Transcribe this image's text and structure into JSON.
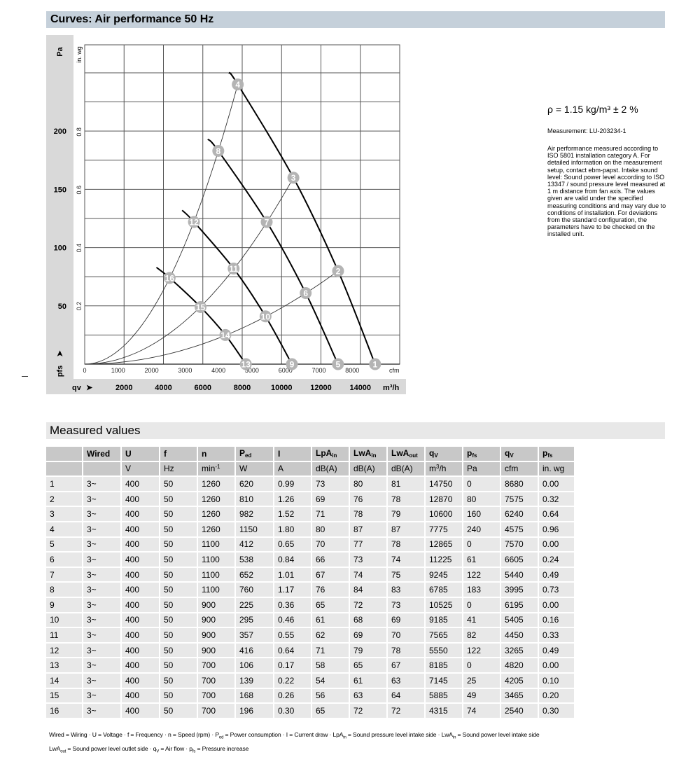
{
  "curves_header": {
    "title": "Curves: Air performance 50 Hz"
  },
  "info": {
    "density": "ρ = 1.15 kg/m³ ± 2 %",
    "measurement": "Measurement: LU-203234-1",
    "description": "Air performance measured according to ISO 5801 installation category A. For detailed information on the measurement setup, contact ebm-papst. Intake sound level: Sound power level according to ISO 13347 / sound pressure level measured at 1 m distance from fan axis. The values given are valid under the specified measuring conditions and may vary due to conditions of installation. For deviations from the standard configuration, the parameters have to be checked on the installed unit."
  },
  "chart_data": {
    "type": "line",
    "title": "",
    "xlabel": "qv",
    "xunit": "m³/h",
    "xunit_secondary": "cfm",
    "ylabel": "pfs",
    "yunit": "Pa",
    "yunit_secondary": "in. wg",
    "xlim": [
      0,
      16000
    ],
    "ylim": [
      0,
      274
    ],
    "grid": true,
    "x_ticks": [
      "2000",
      "4000",
      "6000",
      "8000",
      "10000",
      "12000",
      "14000"
    ],
    "x_ticks_secondary": [
      "0",
      "1000",
      "2000",
      "3000",
      "4000",
      "5000",
      "6000",
      "7000",
      "8000"
    ],
    "y_ticks": [
      "50",
      "100",
      "150",
      "200"
    ],
    "y_ticks_secondary": [
      "0.2",
      "0.4",
      "0.6",
      "0.8"
    ],
    "fan_curves": [
      {
        "speed_rpm": 1260,
        "curve_start": [
          7323,
          250
        ],
        "points": [
          4,
          3,
          2,
          1
        ]
      },
      {
        "speed_rpm": 1100,
        "curve_start": [
          6255,
          193
        ],
        "points": [
          8,
          7,
          6,
          5
        ]
      },
      {
        "speed_rpm": 900,
        "curve_start": [
          4950,
          132
        ],
        "points": [
          12,
          11,
          10,
          9
        ]
      },
      {
        "speed_rpm": 700,
        "curve_start": [
          3644,
          83
        ],
        "points": [
          16,
          15,
          14,
          13
        ]
      }
    ],
    "system_curves": [
      [
        4,
        8,
        12,
        16
      ],
      [
        3,
        7,
        11,
        15
      ],
      [
        2,
        6,
        10,
        14
      ]
    ],
    "operating_points": [
      {
        "id": "1",
        "qv": 14750,
        "pfs": 0
      },
      {
        "id": "2",
        "qv": 12870,
        "pfs": 80
      },
      {
        "id": "3",
        "qv": 10600,
        "pfs": 160
      },
      {
        "id": "4",
        "qv": 7775,
        "pfs": 240
      },
      {
        "id": "5",
        "qv": 12865,
        "pfs": 0
      },
      {
        "id": "6",
        "qv": 11225,
        "pfs": 61
      },
      {
        "id": "7",
        "qv": 9245,
        "pfs": 122
      },
      {
        "id": "8",
        "qv": 6785,
        "pfs": 183
      },
      {
        "id": "9",
        "qv": 10525,
        "pfs": 0
      },
      {
        "id": "10",
        "qv": 9185,
        "pfs": 41
      },
      {
        "id": "11",
        "qv": 7565,
        "pfs": 82
      },
      {
        "id": "12",
        "qv": 5550,
        "pfs": 122
      },
      {
        "id": "13",
        "qv": 8185,
        "pfs": 0
      },
      {
        "id": "14",
        "qv": 7145,
        "pfs": 25
      },
      {
        "id": "15",
        "qv": 5885,
        "pfs": 49
      },
      {
        "id": "16",
        "qv": 4315,
        "pfs": 74
      }
    ],
    "colors": {
      "fan_curve": "#000000",
      "system_curve": "#333333",
      "marker": "#b4b4b4",
      "marker_text": "#ffffff",
      "band": "#d9d9d9"
    }
  },
  "measured": {
    "title": "Measured values",
    "headers": [
      {
        "main": ""
      },
      {
        "main": "Wired"
      },
      {
        "main": "U"
      },
      {
        "main": "f"
      },
      {
        "main": "n"
      },
      {
        "main": "P",
        "sub": "ed"
      },
      {
        "main": "I"
      },
      {
        "main": "LpA",
        "sub": "in"
      },
      {
        "main": "LwA",
        "sub": "in"
      },
      {
        "main": "LwA",
        "sub": "out"
      },
      {
        "main": "q",
        "sub": "V"
      },
      {
        "main": "p",
        "sub": "fs"
      },
      {
        "main": "q",
        "sub": "V"
      },
      {
        "main": "p",
        "sub": "fs"
      }
    ],
    "units": [
      {
        "main": ""
      },
      {
        "main": ""
      },
      {
        "main": "V"
      },
      {
        "main": "Hz"
      },
      {
        "main": "min",
        "sup": "-1"
      },
      {
        "main": "W"
      },
      {
        "main": "A"
      },
      {
        "main": "dB(A)"
      },
      {
        "main": "dB(A)"
      },
      {
        "main": "dB(A)"
      },
      {
        "main": "m",
        "sup": "3",
        "after": "/h"
      },
      {
        "main": "Pa"
      },
      {
        "main": "cfm"
      },
      {
        "main": "in. wg"
      }
    ],
    "rows": [
      [
        "1",
        "3~",
        "400",
        "50",
        "1260",
        "620",
        "0.99",
        "73",
        "80",
        "81",
        "14750",
        "0",
        "8680",
        "0.00"
      ],
      [
        "2",
        "3~",
        "400",
        "50",
        "1260",
        "810",
        "1.26",
        "69",
        "76",
        "78",
        "12870",
        "80",
        "7575",
        "0.32"
      ],
      [
        "3",
        "3~",
        "400",
        "50",
        "1260",
        "982",
        "1.52",
        "71",
        "78",
        "79",
        "10600",
        "160",
        "6240",
        "0.64"
      ],
      [
        "4",
        "3~",
        "400",
        "50",
        "1260",
        "1150",
        "1.80",
        "80",
        "87",
        "87",
        "7775",
        "240",
        "4575",
        "0.96"
      ],
      [
        "5",
        "3~",
        "400",
        "50",
        "1100",
        "412",
        "0.65",
        "70",
        "77",
        "78",
        "12865",
        "0",
        "7570",
        "0.00"
      ],
      [
        "6",
        "3~",
        "400",
        "50",
        "1100",
        "538",
        "0.84",
        "66",
        "73",
        "74",
        "11225",
        "61",
        "6605",
        "0.24"
      ],
      [
        "7",
        "3~",
        "400",
        "50",
        "1100",
        "652",
        "1.01",
        "67",
        "74",
        "75",
        "9245",
        "122",
        "5440",
        "0.49"
      ],
      [
        "8",
        "3~",
        "400",
        "50",
        "1100",
        "760",
        "1.17",
        "76",
        "84",
        "83",
        "6785",
        "183",
        "3995",
        "0.73"
      ],
      [
        "9",
        "3~",
        "400",
        "50",
        "900",
        "225",
        "0.36",
        "65",
        "72",
        "73",
        "10525",
        "0",
        "6195",
        "0.00"
      ],
      [
        "10",
        "3~",
        "400",
        "50",
        "900",
        "295",
        "0.46",
        "61",
        "68",
        "69",
        "9185",
        "41",
        "5405",
        "0.16"
      ],
      [
        "11",
        "3~",
        "400",
        "50",
        "900",
        "357",
        "0.55",
        "62",
        "69",
        "70",
        "7565",
        "82",
        "4450",
        "0.33"
      ],
      [
        "12",
        "3~",
        "400",
        "50",
        "900",
        "416",
        "0.64",
        "71",
        "79",
        "78",
        "5550",
        "122",
        "3265",
        "0.49"
      ],
      [
        "13",
        "3~",
        "400",
        "50",
        "700",
        "106",
        "0.17",
        "58",
        "65",
        "67",
        "8185",
        "0",
        "4820",
        "0.00"
      ],
      [
        "14",
        "3~",
        "400",
        "50",
        "700",
        "139",
        "0.22",
        "54",
        "61",
        "63",
        "7145",
        "25",
        "4205",
        "0.10"
      ],
      [
        "15",
        "3~",
        "400",
        "50",
        "700",
        "168",
        "0.26",
        "56",
        "63",
        "64",
        "5885",
        "49",
        "3465",
        "0.20"
      ],
      [
        "16",
        "3~",
        "400",
        "50",
        "700",
        "196",
        "0.30",
        "65",
        "72",
        "72",
        "4315",
        "74",
        "2540",
        "0.30"
      ]
    ]
  },
  "legend": [
    {
      "abbr": "Wired",
      "sub": "",
      "desc": "Wiring"
    },
    {
      "abbr": "U",
      "sub": "",
      "desc": "Voltage"
    },
    {
      "abbr": "f",
      "sub": "",
      "desc": "Frequency"
    },
    {
      "abbr": "n",
      "sub": "",
      "desc": "Speed (rpm)"
    },
    {
      "abbr": "P",
      "sub": "ed",
      "desc": "Power consumption"
    },
    {
      "abbr": "I",
      "sub": "",
      "desc": "Current draw"
    },
    {
      "abbr": "LpA",
      "sub": "in",
      "desc": "Sound pressure level intake side"
    },
    {
      "abbr": "LwA",
      "sub": "in",
      "desc": "Sound power level intake side"
    },
    {
      "abbr": "LwA",
      "sub": "out",
      "desc": "Sound power level outlet side"
    },
    {
      "abbr": "q",
      "sub": "V",
      "desc": "Air flow"
    },
    {
      "abbr": "p",
      "sub": "fs",
      "desc": "Pressure increase"
    }
  ]
}
